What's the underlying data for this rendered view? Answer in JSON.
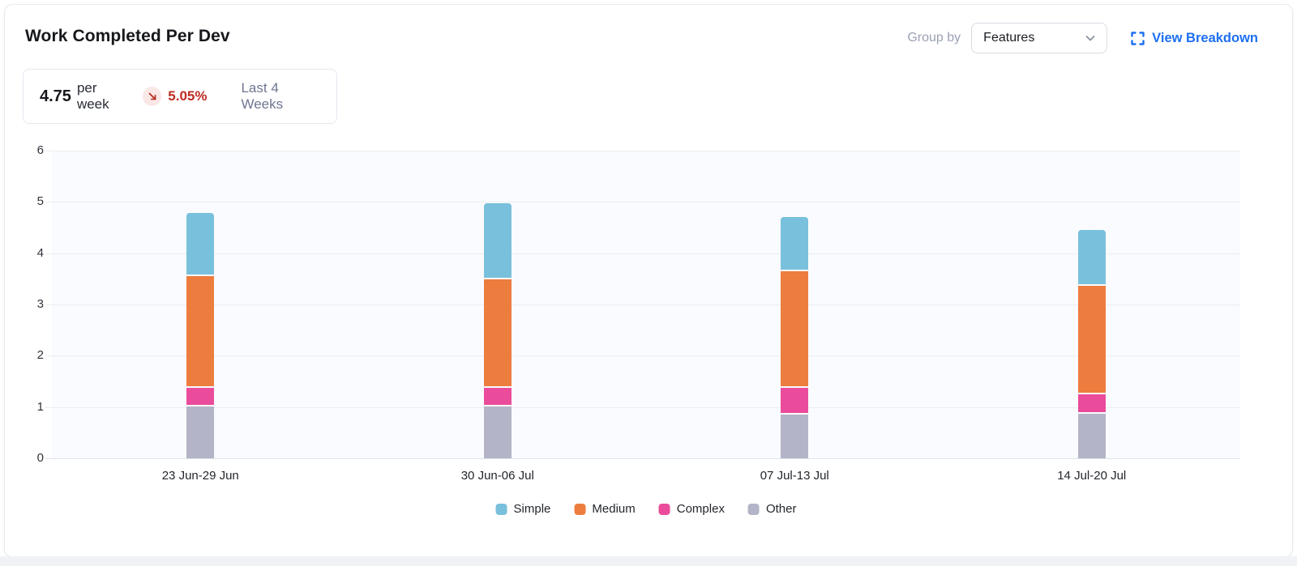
{
  "card": {
    "title": "Work Completed Per Dev",
    "group_by_label": "Group by",
    "group_by_value": "Features",
    "view_breakdown_label": "View Breakdown"
  },
  "stat": {
    "value": "4.75",
    "unit": "per week",
    "delta": "5.05%",
    "trend": "down",
    "period": "Last 4 Weeks"
  },
  "colors": {
    "accent_link": "#1D6FF2",
    "delta_negative": "#BE2B21",
    "delta_badge_bg": "#F9E8E5",
    "plot_background": "#FAFBFE"
  },
  "chart_data": {
    "type": "bar",
    "stacked": true,
    "title": "Work Completed Per Dev",
    "categories": [
      "23 Jun-29 Jun",
      "30 Jun-06 Jul",
      "07 Jul-13 Jul",
      "14 Jul-20 Jul"
    ],
    "series": [
      {
        "name": "Simple",
        "color": "#79C0DC",
        "values": [
          1.2,
          1.45,
          1.02,
          1.05
        ]
      },
      {
        "name": "Medium",
        "color": "#ED7D3E",
        "values": [
          2.18,
          2.12,
          2.27,
          2.12
        ]
      },
      {
        "name": "Complex",
        "color": "#EA4C9B",
        "values": [
          0.35,
          0.35,
          0.52,
          0.38
        ]
      },
      {
        "name": "Other",
        "color": "#B4B4C8",
        "values": [
          1.05,
          1.05,
          0.89,
          0.9
        ]
      }
    ],
    "totals": [
      4.78,
      4.97,
      4.7,
      4.45
    ],
    "xlabel": "",
    "ylabel": "",
    "ylim": [
      0,
      6
    ],
    "yticks": [
      0,
      1,
      2,
      3,
      4,
      5,
      6
    ],
    "grid": true,
    "legend_position": "bottom"
  }
}
